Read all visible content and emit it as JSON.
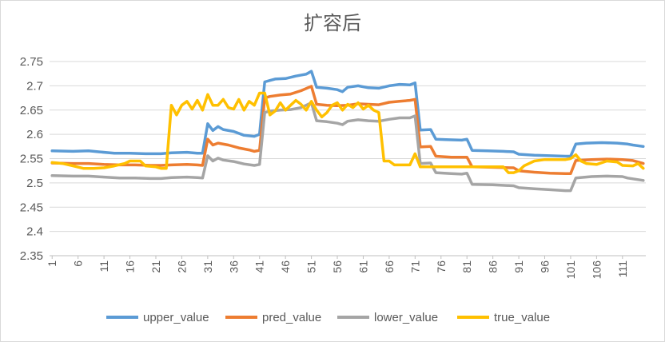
{
  "chart_data": {
    "type": "line",
    "title": "扩容后",
    "xlabel": "",
    "ylabel": "",
    "x_range": [
      1,
      115
    ],
    "x_tick_labels": [
      "1",
      "6",
      "11",
      "16",
      "21",
      "26",
      "31",
      "36",
      "41",
      "46",
      "51",
      "56",
      "61",
      "66",
      "71",
      "76",
      "81",
      "86",
      "91",
      "96",
      "101",
      "106",
      "111"
    ],
    "ylim": [
      2.35,
      2.75
    ],
    "y_ticks": [
      2.35,
      2.4,
      2.45,
      2.5,
      2.55,
      2.6,
      2.65,
      2.7,
      2.75
    ],
    "y_tick_labels": [
      "2.35",
      "2.4",
      "2.45",
      "2.5",
      "2.55",
      "2.6",
      "2.65",
      "2.7",
      "2.75"
    ],
    "grid": true,
    "legend_position": "bottom",
    "series": [
      {
        "name": "upper_value",
        "color": "#5B9BD5",
        "points": [
          [
            1,
            2.566
          ],
          [
            5,
            2.565
          ],
          [
            8,
            2.566
          ],
          [
            10,
            2.564
          ],
          [
            13,
            2.561
          ],
          [
            16,
            2.561
          ],
          [
            19,
            2.56
          ],
          [
            22,
            2.56
          ],
          [
            24,
            2.562
          ],
          [
            27,
            2.563
          ],
          [
            29,
            2.561
          ],
          [
            30,
            2.561
          ],
          [
            31,
            2.622
          ],
          [
            32,
            2.608
          ],
          [
            33,
            2.616
          ],
          [
            34,
            2.61
          ],
          [
            36,
            2.606
          ],
          [
            38,
            2.598
          ],
          [
            40,
            2.596
          ],
          [
            41,
            2.6
          ],
          [
            42,
            2.708
          ],
          [
            43,
            2.711
          ],
          [
            44,
            2.714
          ],
          [
            46,
            2.715
          ],
          [
            48,
            2.72
          ],
          [
            50,
            2.724
          ],
          [
            51,
            2.73
          ],
          [
            52,
            2.697
          ],
          [
            54,
            2.695
          ],
          [
            56,
            2.692
          ],
          [
            57,
            2.688
          ],
          [
            58,
            2.697
          ],
          [
            60,
            2.7
          ],
          [
            62,
            2.696
          ],
          [
            64,
            2.695
          ],
          [
            66,
            2.7
          ],
          [
            68,
            2.703
          ],
          [
            70,
            2.702
          ],
          [
            71,
            2.706
          ],
          [
            72,
            2.609
          ],
          [
            74,
            2.61
          ],
          [
            75,
            2.59
          ],
          [
            77,
            2.589
          ],
          [
            80,
            2.588
          ],
          [
            81,
            2.59
          ],
          [
            82,
            2.567
          ],
          [
            85,
            2.566
          ],
          [
            88,
            2.565
          ],
          [
            90,
            2.564
          ],
          [
            91,
            2.559
          ],
          [
            94,
            2.557
          ],
          [
            97,
            2.556
          ],
          [
            100,
            2.555
          ],
          [
            101,
            2.555
          ],
          [
            102,
            2.58
          ],
          [
            104,
            2.582
          ],
          [
            107,
            2.583
          ],
          [
            110,
            2.582
          ],
          [
            112,
            2.58
          ],
          [
            113,
            2.578
          ],
          [
            115,
            2.575
          ]
        ]
      },
      {
        "name": "pred_value",
        "color": "#ED7D31",
        "points": [
          [
            1,
            2.541
          ],
          [
            5,
            2.54
          ],
          [
            8,
            2.54
          ],
          [
            11,
            2.538
          ],
          [
            14,
            2.537
          ],
          [
            17,
            2.537
          ],
          [
            20,
            2.536
          ],
          [
            22,
            2.536
          ],
          [
            24,
            2.537
          ],
          [
            27,
            2.538
          ],
          [
            29,
            2.537
          ],
          [
            30,
            2.536
          ],
          [
            31,
            2.59
          ],
          [
            32,
            2.578
          ],
          [
            33,
            2.582
          ],
          [
            35,
            2.578
          ],
          [
            37,
            2.572
          ],
          [
            39,
            2.568
          ],
          [
            40,
            2.565
          ],
          [
            41,
            2.567
          ],
          [
            42,
            2.675
          ],
          [
            43,
            2.678
          ],
          [
            45,
            2.681
          ],
          [
            47,
            2.683
          ],
          [
            49,
            2.69
          ],
          [
            51,
            2.699
          ],
          [
            52,
            2.662
          ],
          [
            54,
            2.66
          ],
          [
            56,
            2.659
          ],
          [
            58,
            2.66
          ],
          [
            60,
            2.663
          ],
          [
            62,
            2.662
          ],
          [
            64,
            2.661
          ],
          [
            66,
            2.666
          ],
          [
            68,
            2.668
          ],
          [
            70,
            2.67
          ],
          [
            71,
            2.672
          ],
          [
            72,
            2.574
          ],
          [
            74,
            2.575
          ],
          [
            75,
            2.555
          ],
          [
            78,
            2.553
          ],
          [
            80,
            2.553
          ],
          [
            81,
            2.553
          ],
          [
            82,
            2.533
          ],
          [
            86,
            2.532
          ],
          [
            90,
            2.531
          ],
          [
            91,
            2.525
          ],
          [
            94,
            2.522
          ],
          [
            97,
            2.52
          ],
          [
            100,
            2.519
          ],
          [
            101,
            2.519
          ],
          [
            102,
            2.546
          ],
          [
            105,
            2.548
          ],
          [
            108,
            2.549
          ],
          [
            111,
            2.548
          ],
          [
            113,
            2.546
          ],
          [
            115,
            2.54
          ]
        ]
      },
      {
        "name": "lower_value",
        "color": "#A5A5A5",
        "points": [
          [
            1,
            2.515
          ],
          [
            5,
            2.514
          ],
          [
            8,
            2.514
          ],
          [
            11,
            2.512
          ],
          [
            14,
            2.51
          ],
          [
            17,
            2.51
          ],
          [
            20,
            2.509
          ],
          [
            22,
            2.509
          ],
          [
            24,
            2.511
          ],
          [
            27,
            2.512
          ],
          [
            29,
            2.511
          ],
          [
            30,
            2.51
          ],
          [
            31,
            2.556
          ],
          [
            32,
            2.545
          ],
          [
            33,
            2.551
          ],
          [
            34,
            2.547
          ],
          [
            36,
            2.544
          ],
          [
            38,
            2.539
          ],
          [
            40,
            2.536
          ],
          [
            41,
            2.538
          ],
          [
            42,
            2.645
          ],
          [
            43,
            2.648
          ],
          [
            45,
            2.65
          ],
          [
            47,
            2.651
          ],
          [
            49,
            2.655
          ],
          [
            51,
            2.665
          ],
          [
            52,
            2.628
          ],
          [
            54,
            2.626
          ],
          [
            56,
            2.623
          ],
          [
            57,
            2.62
          ],
          [
            58,
            2.627
          ],
          [
            60,
            2.63
          ],
          [
            62,
            2.628
          ],
          [
            64,
            2.627
          ],
          [
            66,
            2.631
          ],
          [
            68,
            2.634
          ],
          [
            70,
            2.634
          ],
          [
            71,
            2.638
          ],
          [
            72,
            2.54
          ],
          [
            74,
            2.541
          ],
          [
            75,
            2.521
          ],
          [
            78,
            2.519
          ],
          [
            80,
            2.518
          ],
          [
            81,
            2.52
          ],
          [
            82,
            2.497
          ],
          [
            86,
            2.496
          ],
          [
            90,
            2.494
          ],
          [
            91,
            2.49
          ],
          [
            94,
            2.488
          ],
          [
            97,
            2.486
          ],
          [
            100,
            2.484
          ],
          [
            101,
            2.484
          ],
          [
            102,
            2.51
          ],
          [
            105,
            2.513
          ],
          [
            108,
            2.514
          ],
          [
            111,
            2.513
          ],
          [
            112,
            2.51
          ],
          [
            115,
            2.505
          ]
        ]
      },
      {
        "name": "true_value",
        "color": "#FFC000",
        "points": [
          [
            1,
            2.542
          ],
          [
            3,
            2.54
          ],
          [
            5,
            2.535
          ],
          [
            7,
            2.53
          ],
          [
            9,
            2.53
          ],
          [
            11,
            2.531
          ],
          [
            13,
            2.535
          ],
          [
            15,
            2.54
          ],
          [
            16,
            2.545
          ],
          [
            18,
            2.545
          ],
          [
            19,
            2.535
          ],
          [
            21,
            2.533
          ],
          [
            22,
            2.53
          ],
          [
            23,
            2.53
          ],
          [
            24,
            2.66
          ],
          [
            25,
            2.64
          ],
          [
            26,
            2.66
          ],
          [
            27,
            2.668
          ],
          [
            28,
            2.652
          ],
          [
            29,
            2.67
          ],
          [
            30,
            2.65
          ],
          [
            31,
            2.682
          ],
          [
            32,
            2.66
          ],
          [
            33,
            2.66
          ],
          [
            34,
            2.672
          ],
          [
            35,
            2.655
          ],
          [
            36,
            2.652
          ],
          [
            37,
            2.672
          ],
          [
            38,
            2.65
          ],
          [
            39,
            2.668
          ],
          [
            40,
            2.66
          ],
          [
            41,
            2.685
          ],
          [
            42,
            2.685
          ],
          [
            43,
            2.64
          ],
          [
            44,
            2.648
          ],
          [
            45,
            2.665
          ],
          [
            46,
            2.65
          ],
          [
            47,
            2.66
          ],
          [
            48,
            2.67
          ],
          [
            49,
            2.662
          ],
          [
            50,
            2.65
          ],
          [
            51,
            2.668
          ],
          [
            52,
            2.65
          ],
          [
            53,
            2.636
          ],
          [
            54,
            2.645
          ],
          [
            55,
            2.66
          ],
          [
            56,
            2.665
          ],
          [
            57,
            2.65
          ],
          [
            58,
            2.662
          ],
          [
            59,
            2.655
          ],
          [
            60,
            2.665
          ],
          [
            61,
            2.652
          ],
          [
            62,
            2.66
          ],
          [
            63,
            2.65
          ],
          [
            64,
            2.645
          ],
          [
            65,
            2.545
          ],
          [
            66,
            2.545
          ],
          [
            67,
            2.537
          ],
          [
            68,
            2.537
          ],
          [
            69,
            2.537
          ],
          [
            70,
            2.537
          ],
          [
            71,
            2.56
          ],
          [
            72,
            2.533
          ],
          [
            80,
            2.533
          ],
          [
            88,
            2.533
          ],
          [
            89,
            2.521
          ],
          [
            90,
            2.521
          ],
          [
            91,
            2.525
          ],
          [
            92,
            2.535
          ],
          [
            93,
            2.54
          ],
          [
            94,
            2.545
          ],
          [
            96,
            2.548
          ],
          [
            100,
            2.548
          ],
          [
            101,
            2.55
          ],
          [
            102,
            2.558
          ],
          [
            103,
            2.545
          ],
          [
            104,
            2.54
          ],
          [
            106,
            2.538
          ],
          [
            108,
            2.545
          ],
          [
            110,
            2.543
          ],
          [
            111,
            2.536
          ],
          [
            113,
            2.535
          ],
          [
            114,
            2.54
          ],
          [
            115,
            2.53
          ]
        ]
      }
    ]
  }
}
